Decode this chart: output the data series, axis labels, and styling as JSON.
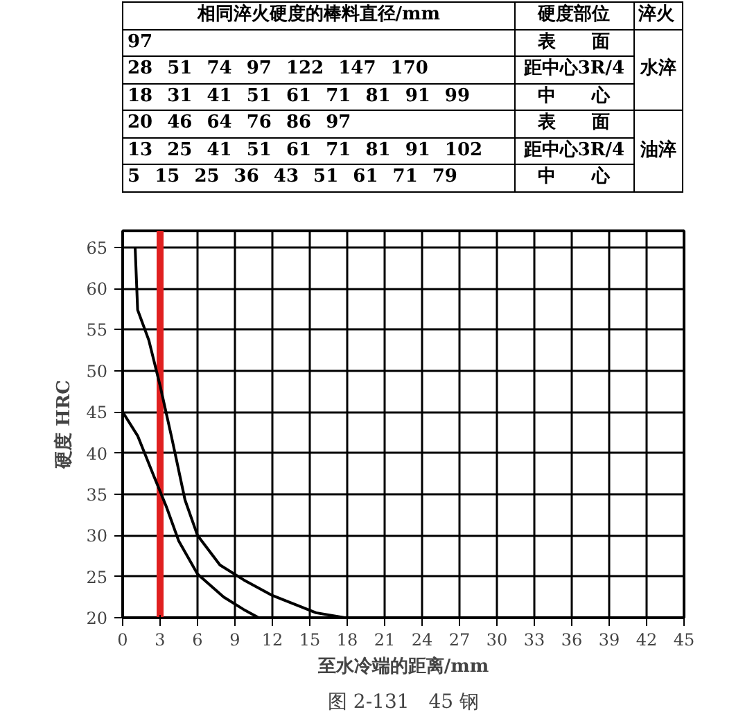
{
  "chart_data": {
    "type": "line",
    "xlabel": "至水冷端的距离/mm",
    "ylabel": "硬度 HRC",
    "x": [
      1,
      1.2,
      2.1,
      3.0,
      3.9,
      5.0,
      6.0,
      7.8,
      9.7,
      12,
      15.5,
      17.8
    ],
    "series": [
      {
        "color": "#000000",
        "values": [
          65,
          57.4,
          53.7,
          48.2,
          42.1,
          34.3,
          30,
          26.4,
          24.6,
          22.7,
          20.6,
          20
        ]
      },
      {
        "color": "#000000",
        "x": [
          0,
          1.2,
          2.5,
          3.5,
          4.5,
          6,
          8.1,
          9.7,
          10.9
        ],
        "values": [
          45,
          42.1,
          37.2,
          33.5,
          29.3,
          25.3,
          22.5,
          21,
          20
        ]
      }
    ],
    "xlim": [
      0,
      45
    ],
    "ylim": [
      20,
      67
    ],
    "xticks": [
      0,
      3,
      6,
      9,
      12,
      15,
      18,
      21,
      24,
      27,
      30,
      33,
      36,
      39,
      42,
      45
    ],
    "yticks": [
      20,
      25,
      30,
      35,
      40,
      45,
      50,
      55,
      60,
      65
    ],
    "grid": true,
    "line_style": "solid",
    "marker": "none",
    "ref_lines": [
      {
        "axis": "x",
        "value": 3,
        "color": "#e02020"
      }
    ],
    "annotations": [
      "相同淬火硬度的棒料直径/mm",
      "硬度部位",
      "淬火",
      "97",
      "表　　面",
      "28 51 74 97 122 147 170",
      "距中心3R/4",
      "18 31 41 51 61 71 81 91 99",
      "中　　心",
      "20 46 64 76 86 97",
      "表　　面",
      "13 25 41 51 61 71 81 91 102",
      "距中心3R/4",
      "5 15 25 36 43 51 61 71 79",
      "中　　心",
      "水淬",
      "油淬",
      "图 2-131　45 钢"
    ]
  }
}
